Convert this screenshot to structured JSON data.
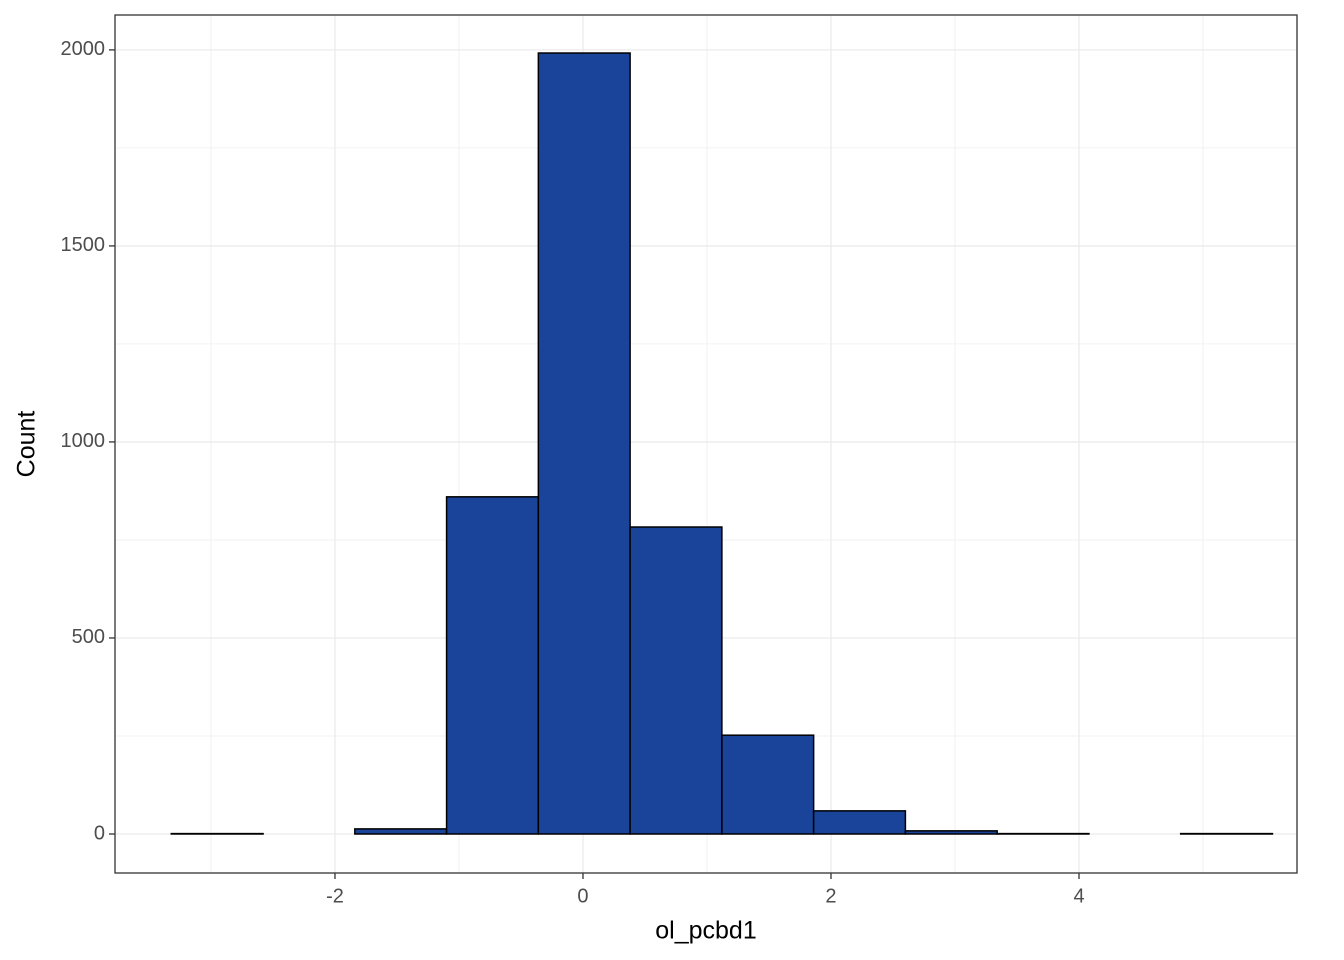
{
  "chart_data": {
    "type": "histogram",
    "x_label": "ol_pcbd1",
    "y_label": "Count",
    "bins": [
      -3.32,
      -2.58,
      -1.84,
      -1.1,
      -0.36,
      0.38,
      1.12,
      1.86,
      2.6,
      3.34,
      4.08,
      4.82,
      5.56
    ],
    "values": [
      1,
      0,
      13,
      860,
      1992,
      783,
      252,
      59,
      8,
      1,
      0,
      1
    ],
    "color": "#1a4499",
    "edge_color": "#000000",
    "xlim": [
      -3.774,
      5.758
    ],
    "xticks": [
      -2,
      0,
      2,
      4
    ],
    "ylim": [
      -99.5,
      2089
    ],
    "yticks": [
      0,
      500,
      1000,
      1500,
      2000
    ],
    "grid": true
  }
}
